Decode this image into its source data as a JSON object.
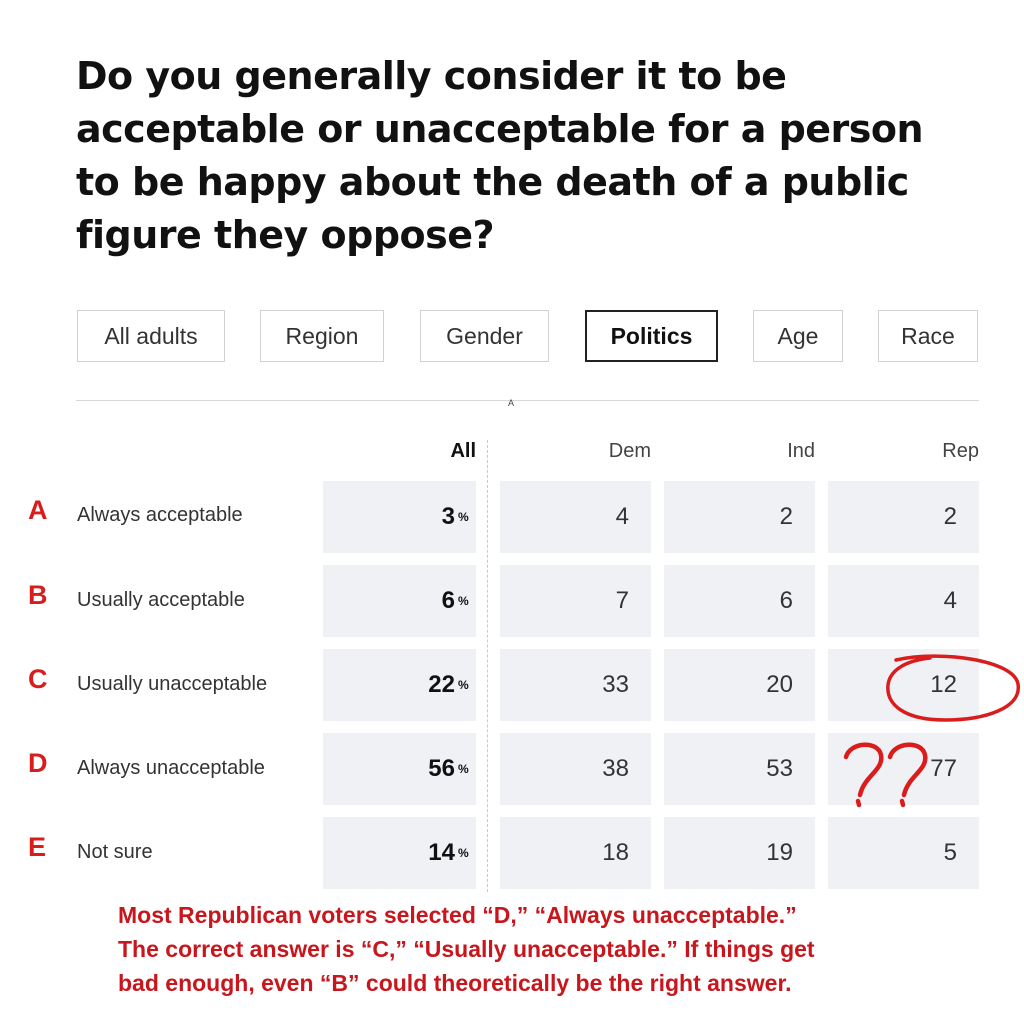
{
  "question": "Do you generally consider it to be acceptable or unacceptable for a person to be happy about the death of a public figure they oppose?",
  "tabs": [
    {
      "label": "All adults",
      "active": false
    },
    {
      "label": "Region",
      "active": false
    },
    {
      "label": "Gender",
      "active": false
    },
    {
      "label": "Politics",
      "active": true
    },
    {
      "label": "Age",
      "active": false
    },
    {
      "label": "Race",
      "active": false
    }
  ],
  "divider_marker": "A",
  "columns": [
    "All",
    "Dem",
    "Ind",
    "Rep"
  ],
  "percent_symbol": "%",
  "rows": [
    {
      "letter": "A",
      "label": "Always acceptable",
      "all": "3",
      "dem": "4",
      "ind": "2",
      "rep": "2"
    },
    {
      "letter": "B",
      "label": "Usually acceptable",
      "all": "6",
      "dem": "7",
      "ind": "6",
      "rep": "4"
    },
    {
      "letter": "C",
      "label": "Usually unacceptable",
      "all": "22",
      "dem": "33",
      "ind": "20",
      "rep": "12"
    },
    {
      "letter": "D",
      "label": "Always unacceptable",
      "all": "56",
      "dem": "38",
      "ind": "53",
      "rep": "77"
    },
    {
      "letter": "E",
      "label": "Not sure",
      "all": "14",
      "dem": "18",
      "ind": "19",
      "rep": "5"
    }
  ],
  "annotations": {
    "circle_target": "Rep / Usually unacceptable",
    "question_marks": "??",
    "ink_color": "#d91c1c"
  },
  "note": {
    "line1": "Most Republican voters selected “D,” “Always unacceptable.”",
    "line2": "The correct answer is “C,” “Usually unacceptable.” If things get",
    "line3": "bad enough, even “B” could theoretically be the right answer."
  }
}
